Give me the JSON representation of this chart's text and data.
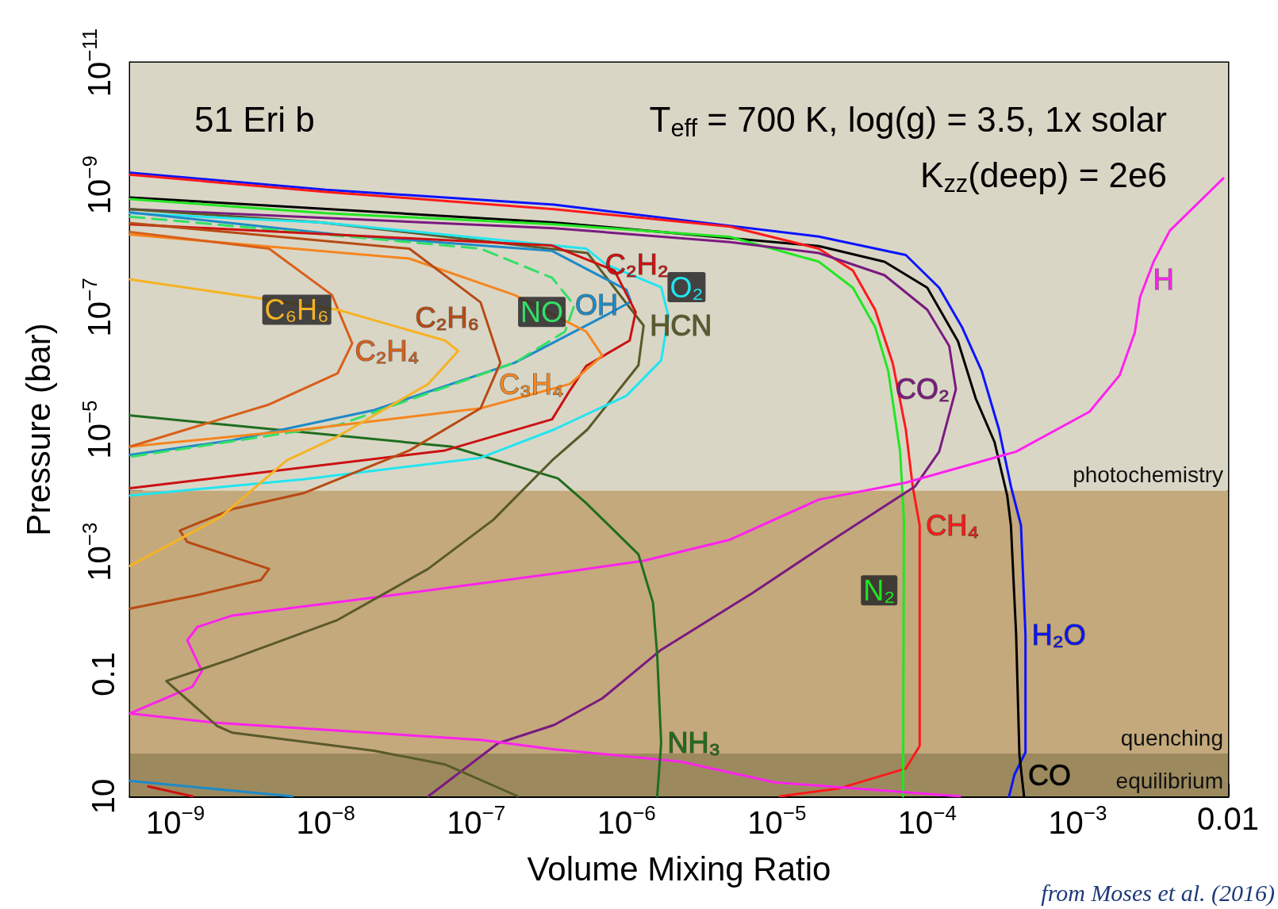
{
  "chart_data": {
    "type": "line",
    "xlabel": "Volume Mixing Ratio",
    "ylabel": "Pressure (bar)",
    "log": "xy",
    "grid": false,
    "annotations": [
      "51 Eri b",
      "T$_{eff}$ = 700 K, log(g) = 3.5, 1x solar",
      "K$_{zz}$(deep) = 2e6",
      "from Moses et al. (2016)"
    ],
    "xlim": [
      5e-10,
      0.01
    ],
    "ylim": [
      10,
      1e-11
    ],
    "xticks": [
      {
        "value": 1e-09,
        "label": "10$^{−9}$"
      },
      {
        "value": 1e-08,
        "label": "10$^{−8}$"
      },
      {
        "value": 1e-07,
        "label": "10$^{−7}$"
      },
      {
        "value": 1e-06,
        "label": "10$^{−6}$"
      },
      {
        "value": 1e-05,
        "label": "10$^{−5}$"
      },
      {
        "value": 0.0001,
        "label": "10$^{−4}$"
      },
      {
        "value": 0.001,
        "label": "10$^{−3}$"
      },
      0.01
    ],
    "yticks": [
      {
        "value": 1e-11,
        "label": "10$^{−11}$"
      },
      {
        "value": 1e-10,
        "label": null
      },
      {
        "value": 1e-09,
        "label": "10$^{−9}$"
      },
      {
        "value": 1e-08,
        "label": null
      },
      {
        "value": 1e-07,
        "label": "10$^{−7}$"
      },
      {
        "value": 1e-06,
        "label": null
      },
      {
        "value": 1e-05,
        "label": "10$^{−5}$"
      },
      {
        "value": 0.0001,
        "label": null
      },
      {
        "value": 0.001,
        "label": "10$^{−3}$"
      },
      {
        "value": 0.01,
        "label": null
      },
      0.1,
      {
        "value": 1,
        "label": null
      },
      10
    ],
    "bands": [
      {
        "axis": "y",
        "from": 1e-11,
        "to": 0.0001,
        "label": "photochemistry",
        "color": "#dad6c6"
      },
      {
        "axis": "y",
        "from": 0.0001,
        "to": 2,
        "label": "quenching",
        "color": "#c4a97c"
      },
      {
        "axis": "y",
        "from": 2,
        "to": 10,
        "label": "equilibrium",
        "color": "#9c8a5e"
      }
    ],
    "series": [
      {
        "name": "H₂O",
        "color": "#0a14ff",
        "x": [
          5e-10,
          1e-08,
          3.3e-07,
          1.9e-05,
          7.2e-05,
          0.00012,
          0.00017,
          0.00023,
          0.0003,
          0.00036,
          0.00042,
          0.00045,
          0.00045,
          0.00038,
          0.00035
        ],
        "values": [
          6.3e-10,
          1.2e-09,
          2.1e-09,
          7e-09,
          1.4e-08,
          4.8e-08,
          2.1e-07,
          1.1e-06,
          1e-05,
          8.5e-05,
          0.00037,
          0.023,
          1.9,
          4.4,
          10
        ]
      },
      {
        "name": "CO",
        "color": "#000000",
        "x": [
          5e-10,
          3.3e-07,
          1.9e-05,
          5.2e-05,
          0.0001,
          0.00016,
          0.00021,
          0.00028,
          0.00034,
          0.00036,
          0.00039,
          0.00041,
          0.00044
        ],
        "values": [
          1.6e-09,
          4.1e-09,
          1e-08,
          1.8e-08,
          4.8e-08,
          3.6e-07,
          3.1e-06,
          1.6e-05,
          0.00012,
          0.00037,
          0.023,
          2.1,
          10
        ]
      },
      {
        "name": "CH₄",
        "color": "#ff1a1a",
        "x": [
          5e-10,
          1e-08,
          3.3e-07,
          4.9e-06,
          1.9e-05,
          3.2e-05,
          4.5e-05,
          5.9e-05,
          7.2e-05,
          8e-05,
          8.9e-05,
          8.9e-05,
          7.2e-05,
          2.6e-05,
          1.05e-05
        ],
        "values": [
          6.8e-10,
          1.3e-09,
          2.5e-09,
          4.8e-09,
          1.1e-08,
          2.5e-08,
          1.1e-07,
          8.3e-07,
          1e-05,
          8.5e-05,
          0.00037,
          1.5,
          3.5,
          7.4,
          10
        ]
      },
      {
        "name": "N₂",
        "color": "#22e622",
        "x": [
          5e-10,
          1e-08,
          3.3e-07,
          4.9e-06,
          1.9e-05,
          3.2e-05,
          4.5e-05,
          5.5e-05,
          6.6e-05,
          7e-05,
          6.9e-05
        ],
        "values": [
          1.7e-09,
          2.9e-09,
          4.4e-09,
          7.1e-09,
          1.8e-08,
          4.8e-08,
          2.1e-07,
          1.1e-06,
          2.3e-05,
          0.00032,
          10
        ]
      },
      {
        "name": "CO₂",
        "color": "#7a1a80",
        "x": [
          5e-10,
          3.3e-07,
          4.9e-06,
          1.9e-05,
          5.2e-05,
          0.0001,
          0.00014,
          0.000155,
          0.00012,
          8.3e-05,
          2.1e-05,
          6.9e-06,
          1.7e-06,
          6.9e-07,
          3.3e-07,
          1.4e-07,
          4.8e-08
        ],
        "values": [
          2.5e-09,
          5.1e-09,
          8.6e-09,
          1.3e-08,
          3e-08,
          1.1e-07,
          4.3e-07,
          2.2e-06,
          2.3e-05,
          8.5e-05,
          0.00076,
          0.0047,
          0.04,
          0.25,
          0.68,
          1.35,
          10
        ]
      },
      {
        "name": "H",
        "color": "#ff22ee",
        "x": [
          0.0093,
          0.0041,
          0.0032,
          0.0026,
          0.0024,
          0.0019,
          0.0012,
          0.00039,
          7.2e-05,
          1.9e-05,
          4.9e-06,
          1.3e-06,
          3.2e-07,
          2.8e-08,
          2.4e-09,
          1.4e-09,
          1.2e-09,
          1.5e-09,
          1.3e-09,
          5e-10,
          1.8e-09,
          1.1e-07,
          3.3e-07,
          2.3e-06,
          9.6e-06,
          0.000165
        ],
        "values": [
          7.8e-10,
          5.6e-09,
          1.8e-08,
          6.8e-08,
          2.6e-07,
          1.3e-06,
          5.1e-06,
          2.3e-05,
          7.4e-05,
          0.00014,
          0.00063,
          0.0014,
          0.0023,
          0.0051,
          0.011,
          0.017,
          0.028,
          0.089,
          0.16,
          0.44,
          0.62,
          1.2,
          1.7,
          2.7,
          5.9,
          10
        ]
      },
      {
        "name": "NH₃",
        "color": "#1f6e1f",
        "x": [
          5e-10,
          6.8e-08,
          3.5e-07,
          5.4e-07,
          1.2e-06,
          1.5e-06,
          1.6e-06,
          1.7e-06,
          1.6e-06
        ],
        "values": [
          5.9e-06,
          1.9e-05,
          6.3e-05,
          0.00016,
          0.0011,
          0.0068,
          0.049,
          1.35,
          10
        ]
      },
      {
        "name": "HCN",
        "color": "#5a5a2a",
        "x": [
          5e-10,
          9.3e-09,
          5.5e-07,
          1.3e-06,
          1.2e-06,
          5.5e-07,
          3.2e-07,
          1.3e-07,
          4.8e-08,
          1.2e-08,
          2.4e-09,
          8.7e-10,
          1.9e-09,
          2.4e-09,
          2.1e-08,
          6.2e-08,
          1.9e-07
        ],
        "values": [
          2.5e-09,
          4.1e-09,
          1.3e-08,
          2e-07,
          8.9e-07,
          1e-05,
          3.2e-05,
          0.0003,
          0.0019,
          0.013,
          0.056,
          0.13,
          0.71,
          0.91,
          1.8,
          3.0,
          10
        ]
      },
      {
        "name": "O₂",
        "color": "#22e5f0",
        "x": [
          5e-10,
          9.3e-09,
          5.4e-07,
          7.3e-07,
          1.7e-06,
          1.9e-06,
          1.7e-06,
          1e-06,
          3.3e-07,
          1.07e-07,
          7.1e-09,
          5e-10
        ],
        "values": [
          2.9e-09,
          4.1e-09,
          1.1e-08,
          2e-08,
          4.7e-08,
          1.4e-07,
          7.4e-07,
          2.8e-06,
          1e-05,
          2.9e-05,
          6.5e-05,
          0.00012
        ]
      },
      {
        "name": "OH",
        "color": "#1e8ac8",
        "x": [
          5e-10,
          1.2e-08,
          3.2e-07,
          1e-06,
          1.07e-06,
          7.1e-07,
          1.8e-07,
          2.1e-08,
          2.4e-09,
          5e-10,
          null,
          5e-10,
          6e-09
        ],
        "values": [
          2.8e-09,
          6.5e-09,
          1.2e-08,
          5.2e-08,
          8.1e-08,
          1.4e-07,
          8.1e-07,
          4.8e-06,
          1.5e-05,
          2.6e-05,
          null,
          5.6,
          10
        ]
      },
      {
        "name": "NO",
        "color": "#33e066",
        "line_style": "dashed",
        "x": [
          5e-10,
          1.07e-07,
          3.2e-07,
          4.5e-07,
          3.9e-07,
          1.8e-07,
          1.2e-08,
          5e-10
        ],
        "values": [
          3.3e-09,
          1.1e-08,
          3.3e-08,
          9.3e-08,
          2.5e-07,
          8.1e-07,
          8.5e-06,
          2.8e-05
        ]
      },
      {
        "name": "C₂H₂",
        "color": "#cc1111",
        "x": [
          5e-10,
          3.2e-07,
          8.3e-07,
          1.15e-06,
          1.05e-06,
          5.4e-07,
          4.2e-07,
          3.2e-07,
          6.2e-08,
          5e-10,
          null,
          6.6e-10,
          1.3e-09
        ],
        "values": [
          4.4e-09,
          9.8e-09,
          2.5e-08,
          1.2e-07,
          3.5e-07,
          9.1e-07,
          2.3e-06,
          6.8e-06,
          2.2e-05,
          9.1e-05,
          null,
          6.9,
          10
        ]
      },
      {
        "name": "C₃H₄",
        "color": "#f5861f",
        "x": [
          5e-10,
          3.6e-08,
          1.8e-07,
          5.4e-07,
          6.9e-07,
          4.2e-07,
          1.07e-07,
          7.1e-09,
          5e-10
        ],
        "values": [
          6.5e-09,
          1.6e-08,
          6.3e-08,
          2.5e-07,
          6.2e-07,
          1.8e-06,
          4.5e-06,
          1e-05,
          1.9e-05
        ]
      },
      {
        "name": "C₂H₆",
        "color": "#b84a14",
        "x": [
          5e-10,
          3.6e-08,
          1.07e-07,
          1.45e-07,
          1.07e-07,
          3.6e-08,
          7.1e-09,
          2.4e-09,
          1.07e-09,
          1.2e-09,
          4.2e-09,
          3.7e-09,
          1.4e-09,
          5e-10
        ],
        "values": [
          4.2e-09,
          1.1e-08,
          8.3e-08,
          8.1e-07,
          4.5e-06,
          2.2e-05,
          0.00011,
          0.0002,
          0.00045,
          0.00069,
          0.0019,
          0.0029,
          0.0051,
          0.0085
        ]
      },
      {
        "name": "C₂H₄",
        "color": "#d95f1a",
        "x": [
          5e-10,
          4.2e-09,
          1.1e-08,
          1.5e-08,
          1.2e-08,
          4.2e-09,
          5e-10
        ],
        "values": [
          5.9e-09,
          1.1e-08,
          6.3e-08,
          3.9e-07,
          1.2e-06,
          3.9e-06,
          1.9e-05
        ]
      },
      {
        "name": "C₆H₆",
        "color": "#f5b324",
        "x": [
          5e-10,
          1.2e-08,
          6.2e-08,
          7.6e-08,
          4.8e-08,
          1.2e-08,
          5.5e-09,
          2e-09,
          5e-10
        ],
        "values": [
          3.5e-08,
          1.1e-07,
          3.5e-07,
          5.2e-07,
          1.8e-06,
          1.3e-05,
          3.2e-05,
          0.00027,
          0.0017
        ]
      }
    ]
  }
}
